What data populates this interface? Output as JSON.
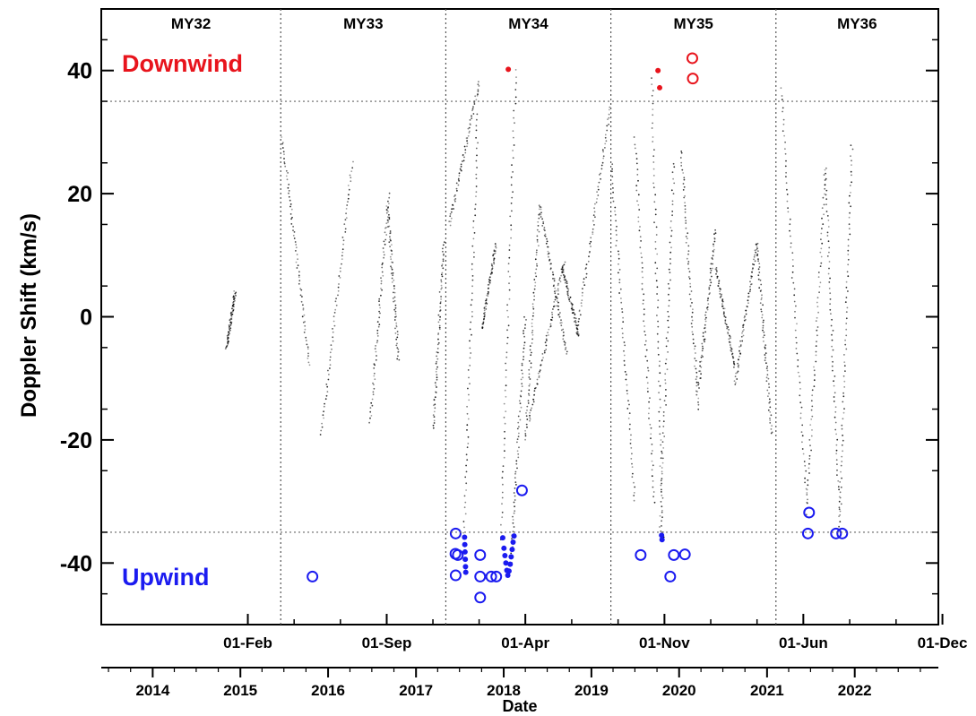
{
  "chart_data": {
    "type": "scatter",
    "ylabel": "Doppler Shift (km/s)",
    "xlabel": "Date",
    "ylim": [
      -50,
      50
    ],
    "y_ticks": [
      -40,
      -20,
      0,
      20,
      40
    ],
    "threshold_lines": [
      35,
      -35
    ],
    "grid": false,
    "mars_years": [
      {
        "label": "MY32",
        "start": "2013-06-01",
        "end": "2015-06-18"
      },
      {
        "label": "MY33",
        "start": "2015-06-18",
        "end": "2017-05-05"
      },
      {
        "label": "MY34",
        "start": "2017-05-05",
        "end": "2019-03-23"
      },
      {
        "label": "MY35",
        "start": "2019-03-23",
        "end": "2021-02-07"
      },
      {
        "label": "MY36",
        "start": "2021-02-07",
        "end": "2022-12-15"
      }
    ],
    "top_axis_ticks": [
      {
        "label": "01-Feb",
        "date": "2015-02-01"
      },
      {
        "label": "01-Sep",
        "date": "2016-09-01"
      },
      {
        "label": "01-Apr",
        "date": "2018-04-01"
      },
      {
        "label": "01-Nov",
        "date": "2019-11-01"
      },
      {
        "label": "01-Jun",
        "date": "2021-06-01"
      },
      {
        "label": "01-Dec",
        "date": "2023-01-01"
      }
    ],
    "bottom_axis_ticks": [
      {
        "label": "2014",
        "date": "2014-01-01"
      },
      {
        "label": "2015",
        "date": "2015-01-01"
      },
      {
        "label": "2016",
        "date": "2016-01-01"
      },
      {
        "label": "2017",
        "date": "2017-01-01"
      },
      {
        "label": "2018",
        "date": "2018-01-01"
      },
      {
        "label": "2019",
        "date": "2019-01-01"
      },
      {
        "label": "2020",
        "date": "2020-01-01"
      },
      {
        "label": "2021",
        "date": "2021-01-01"
      },
      {
        "label": "2022",
        "date": "2022-01-01"
      }
    ],
    "annotations": {
      "downwind": {
        "text": "Downwind",
        "color": "#e8141c"
      },
      "upwind": {
        "text": "Upwind",
        "color": "#1b1bf0"
      }
    },
    "series": [
      {
        "marker": "dots-dark",
        "color": "#000000",
        "segments": [
          {
            "x0": "2014-11-05",
            "y0": -5,
            "x1": "2014-12-10",
            "y1": 4
          },
          {
            "x0": "2015-06-25",
            "y0": 29,
            "x1": "2015-10-15",
            "y1": -8
          },
          {
            "x0": "2015-12-05",
            "y0": -19,
            "x1": "2016-04-10",
            "y1": 25
          },
          {
            "x0": "2016-06-25",
            "y0": -17,
            "x1": "2016-09-10",
            "y1": 20
          },
          {
            "x0": "2016-09-05",
            "y0": 18,
            "x1": "2016-10-20",
            "y1": -7
          },
          {
            "x0": "2017-03-15",
            "y0": -18,
            "x1": "2017-04-25",
            "y1": 12
          },
          {
            "x0": "2017-05-20",
            "y0": 15,
            "x1": "2017-09-20",
            "y1": 38
          },
          {
            "x0": "2017-07-20",
            "y0": -35,
            "x1": "2017-09-15",
            "y1": 33
          },
          {
            "x0": "2017-10-01",
            "y0": -2,
            "x1": "2017-12-01",
            "y1": 12
          },
          {
            "x0": "2017-12-20",
            "y0": -36,
            "x1": "2018-02-20",
            "y1": 40
          },
          {
            "x0": "2018-02-01",
            "y0": -40,
            "x1": "2018-04-01",
            "y1": 0
          },
          {
            "x0": "2018-04-01",
            "y0": -20,
            "x1": "2018-06-01",
            "y1": 18
          },
          {
            "x0": "2018-06-01",
            "y0": 18,
            "x1": "2018-09-20",
            "y1": -6
          },
          {
            "x0": "2018-04-15",
            "y0": -17,
            "x1": "2018-09-10",
            "y1": 9
          },
          {
            "x0": "2018-09-01",
            "y0": 8,
            "x1": "2018-11-10",
            "y1": -3
          },
          {
            "x0": "2018-11-01",
            "y0": -3,
            "x1": "2019-03-20",
            "y1": 34
          },
          {
            "x0": "2019-03-25",
            "y0": 25,
            "x1": "2019-07-01",
            "y1": -30
          },
          {
            "x0": "2019-07-01",
            "y0": 29,
            "x1": "2019-09-20",
            "y1": -30
          },
          {
            "x0": "2019-09-10",
            "y0": 39,
            "x1": "2019-10-25",
            "y1": -36
          },
          {
            "x0": "2019-10-15",
            "y0": -35,
            "x1": "2019-12-10",
            "y1": 25
          },
          {
            "x0": "2020-01-10",
            "y0": 27,
            "x1": "2020-03-20",
            "y1": -15
          },
          {
            "x0": "2020-03-20",
            "y0": -12,
            "x1": "2020-06-01",
            "y1": 14
          },
          {
            "x0": "2020-06-01",
            "y0": 8,
            "x1": "2020-08-20",
            "y1": -8
          },
          {
            "x0": "2020-08-20",
            "y0": -11,
            "x1": "2020-11-20",
            "y1": 12
          },
          {
            "x0": "2020-11-20",
            "y0": 12,
            "x1": "2021-01-20",
            "y1": -19
          },
          {
            "x0": "2021-03-01",
            "y0": 37,
            "x1": "2021-06-15",
            "y1": -30
          },
          {
            "x0": "2021-06-15",
            "y0": -32,
            "x1": "2021-09-01",
            "y1": 24
          },
          {
            "x0": "2021-09-01",
            "y0": 24,
            "x1": "2021-11-01",
            "y1": -35
          },
          {
            "x0": "2021-11-01",
            "y0": -32,
            "x1": "2021-12-20",
            "y1": 28
          }
        ]
      },
      {
        "marker": "filled-dot",
        "color": "#e8141c",
        "points": [
          {
            "x": "2018-01-20",
            "y": 40.2
          },
          {
            "x": "2019-10-05",
            "y": 40
          },
          {
            "x": "2019-10-12",
            "y": 37.2
          }
        ]
      },
      {
        "marker": "open-circle",
        "color": "#e8141c",
        "points": [
          {
            "x": "2020-02-25",
            "y": 42
          },
          {
            "x": "2020-02-27",
            "y": 38.7
          }
        ]
      },
      {
        "marker": "filled-dot",
        "color": "#1b1bf0",
        "points": [
          {
            "x": "2017-07-22",
            "y": -35.8
          },
          {
            "x": "2017-07-23",
            "y": -37
          },
          {
            "x": "2017-07-24",
            "y": -38.2
          },
          {
            "x": "2017-07-25",
            "y": -39.4
          },
          {
            "x": "2017-07-26",
            "y": -40.6
          },
          {
            "x": "2017-07-27",
            "y": -41.5
          },
          {
            "x": "2017-12-28",
            "y": -35.9
          },
          {
            "x": "2018-01-02",
            "y": -37.6
          },
          {
            "x": "2018-01-06",
            "y": -38.8
          },
          {
            "x": "2018-01-10",
            "y": -40
          },
          {
            "x": "2018-01-14",
            "y": -41.2
          },
          {
            "x": "2018-01-18",
            "y": -42
          },
          {
            "x": "2018-01-23",
            "y": -41.3
          },
          {
            "x": "2018-01-28",
            "y": -40.2
          },
          {
            "x": "2018-02-01",
            "y": -39
          },
          {
            "x": "2018-02-05",
            "y": -37.8
          },
          {
            "x": "2018-02-09",
            "y": -36.6
          },
          {
            "x": "2018-02-13",
            "y": -35.6
          },
          {
            "x": "2019-10-20",
            "y": -35.5
          },
          {
            "x": "2019-10-22",
            "y": -36.2
          }
        ]
      },
      {
        "marker": "open-circle",
        "color": "#1b1bf0",
        "points": [
          {
            "x": "2015-10-28",
            "y": -42.2
          },
          {
            "x": "2017-06-15",
            "y": -35.2
          },
          {
            "x": "2017-06-14",
            "y": -38.5
          },
          {
            "x": "2017-06-24",
            "y": -38.7
          },
          {
            "x": "2017-06-15",
            "y": -42
          },
          {
            "x": "2017-09-25",
            "y": -38.7
          },
          {
            "x": "2017-09-25",
            "y": -42.2
          },
          {
            "x": "2017-09-25",
            "y": -45.6
          },
          {
            "x": "2017-11-10",
            "y": -42.2
          },
          {
            "x": "2017-12-01",
            "y": -42.2
          },
          {
            "x": "2018-03-18",
            "y": -28.2
          },
          {
            "x": "2019-07-25",
            "y": -38.7
          },
          {
            "x": "2019-12-10",
            "y": -38.7
          },
          {
            "x": "2020-01-25",
            "y": -38.6
          },
          {
            "x": "2019-11-25",
            "y": -42.2
          },
          {
            "x": "2021-06-25",
            "y": -31.8
          },
          {
            "x": "2021-06-20",
            "y": -35.2
          },
          {
            "x": "2021-10-15",
            "y": -35.2
          },
          {
            "x": "2021-11-10",
            "y": -35.2
          }
        ]
      }
    ]
  }
}
